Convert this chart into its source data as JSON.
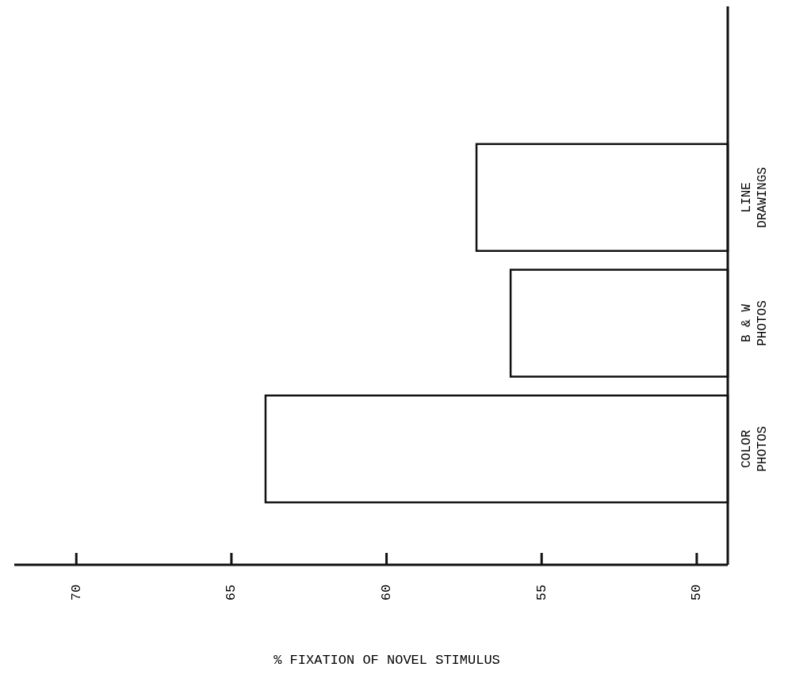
{
  "chart_data": {
    "type": "bar",
    "orientation": "horizontal",
    "xlabel": "% FIXATION OF NOVEL STIMULUS",
    "categories": [
      "LINE DRAWINGS",
      "B & W PHOTOS",
      "COLOR PHOTOS"
    ],
    "values": [
      57.1,
      56.0,
      63.9
    ],
    "xlim": [
      72,
      49
    ],
    "xticks": [
      70,
      65,
      60,
      55,
      50
    ]
  }
}
